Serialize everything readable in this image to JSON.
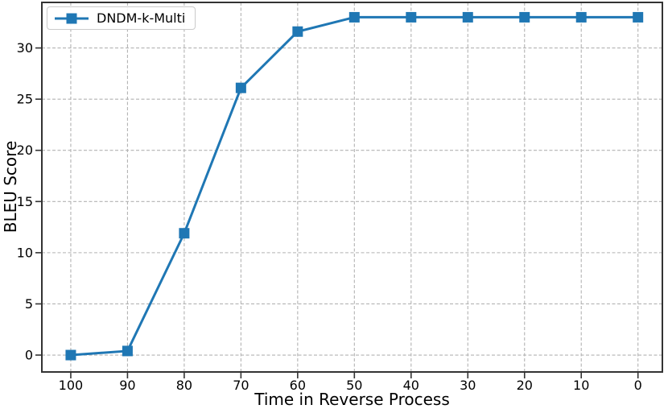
{
  "chart_data": {
    "type": "line",
    "title": "",
    "xlabel": "Time in Reverse Process",
    "ylabel": "BLEU Score",
    "x_ticks": [
      100,
      90,
      80,
      70,
      60,
      50,
      40,
      30,
      20,
      10,
      0
    ],
    "y_ticks": [
      0,
      5,
      10,
      15,
      20,
      25,
      30
    ],
    "xlim": [
      105.1,
      -4.3
    ],
    "ylim": [
      -1.65,
      34.45
    ],
    "x_axis_reversed": true,
    "grid": true,
    "grid_style": "dashed",
    "legend_position": "upper-left",
    "series": [
      {
        "name": "DNDM-k-Multi",
        "color": "#1f77b4",
        "marker": "square",
        "x": [
          100,
          90,
          80,
          70,
          60,
          50,
          40,
          30,
          20,
          10,
          0
        ],
        "y": [
          0.0,
          0.4,
          11.9,
          26.1,
          31.6,
          33.0,
          33.0,
          33.0,
          33.0,
          33.0,
          33.0
        ]
      }
    ]
  },
  "legend": {
    "items": [
      {
        "label": "DNDM-k-Multi",
        "color": "#1f77b4"
      }
    ]
  },
  "colors": {
    "line": "#1f77b4",
    "grid": "#b3b3b3",
    "spine": "#333333",
    "tick_label": "#000000",
    "background": "#ffffff"
  }
}
